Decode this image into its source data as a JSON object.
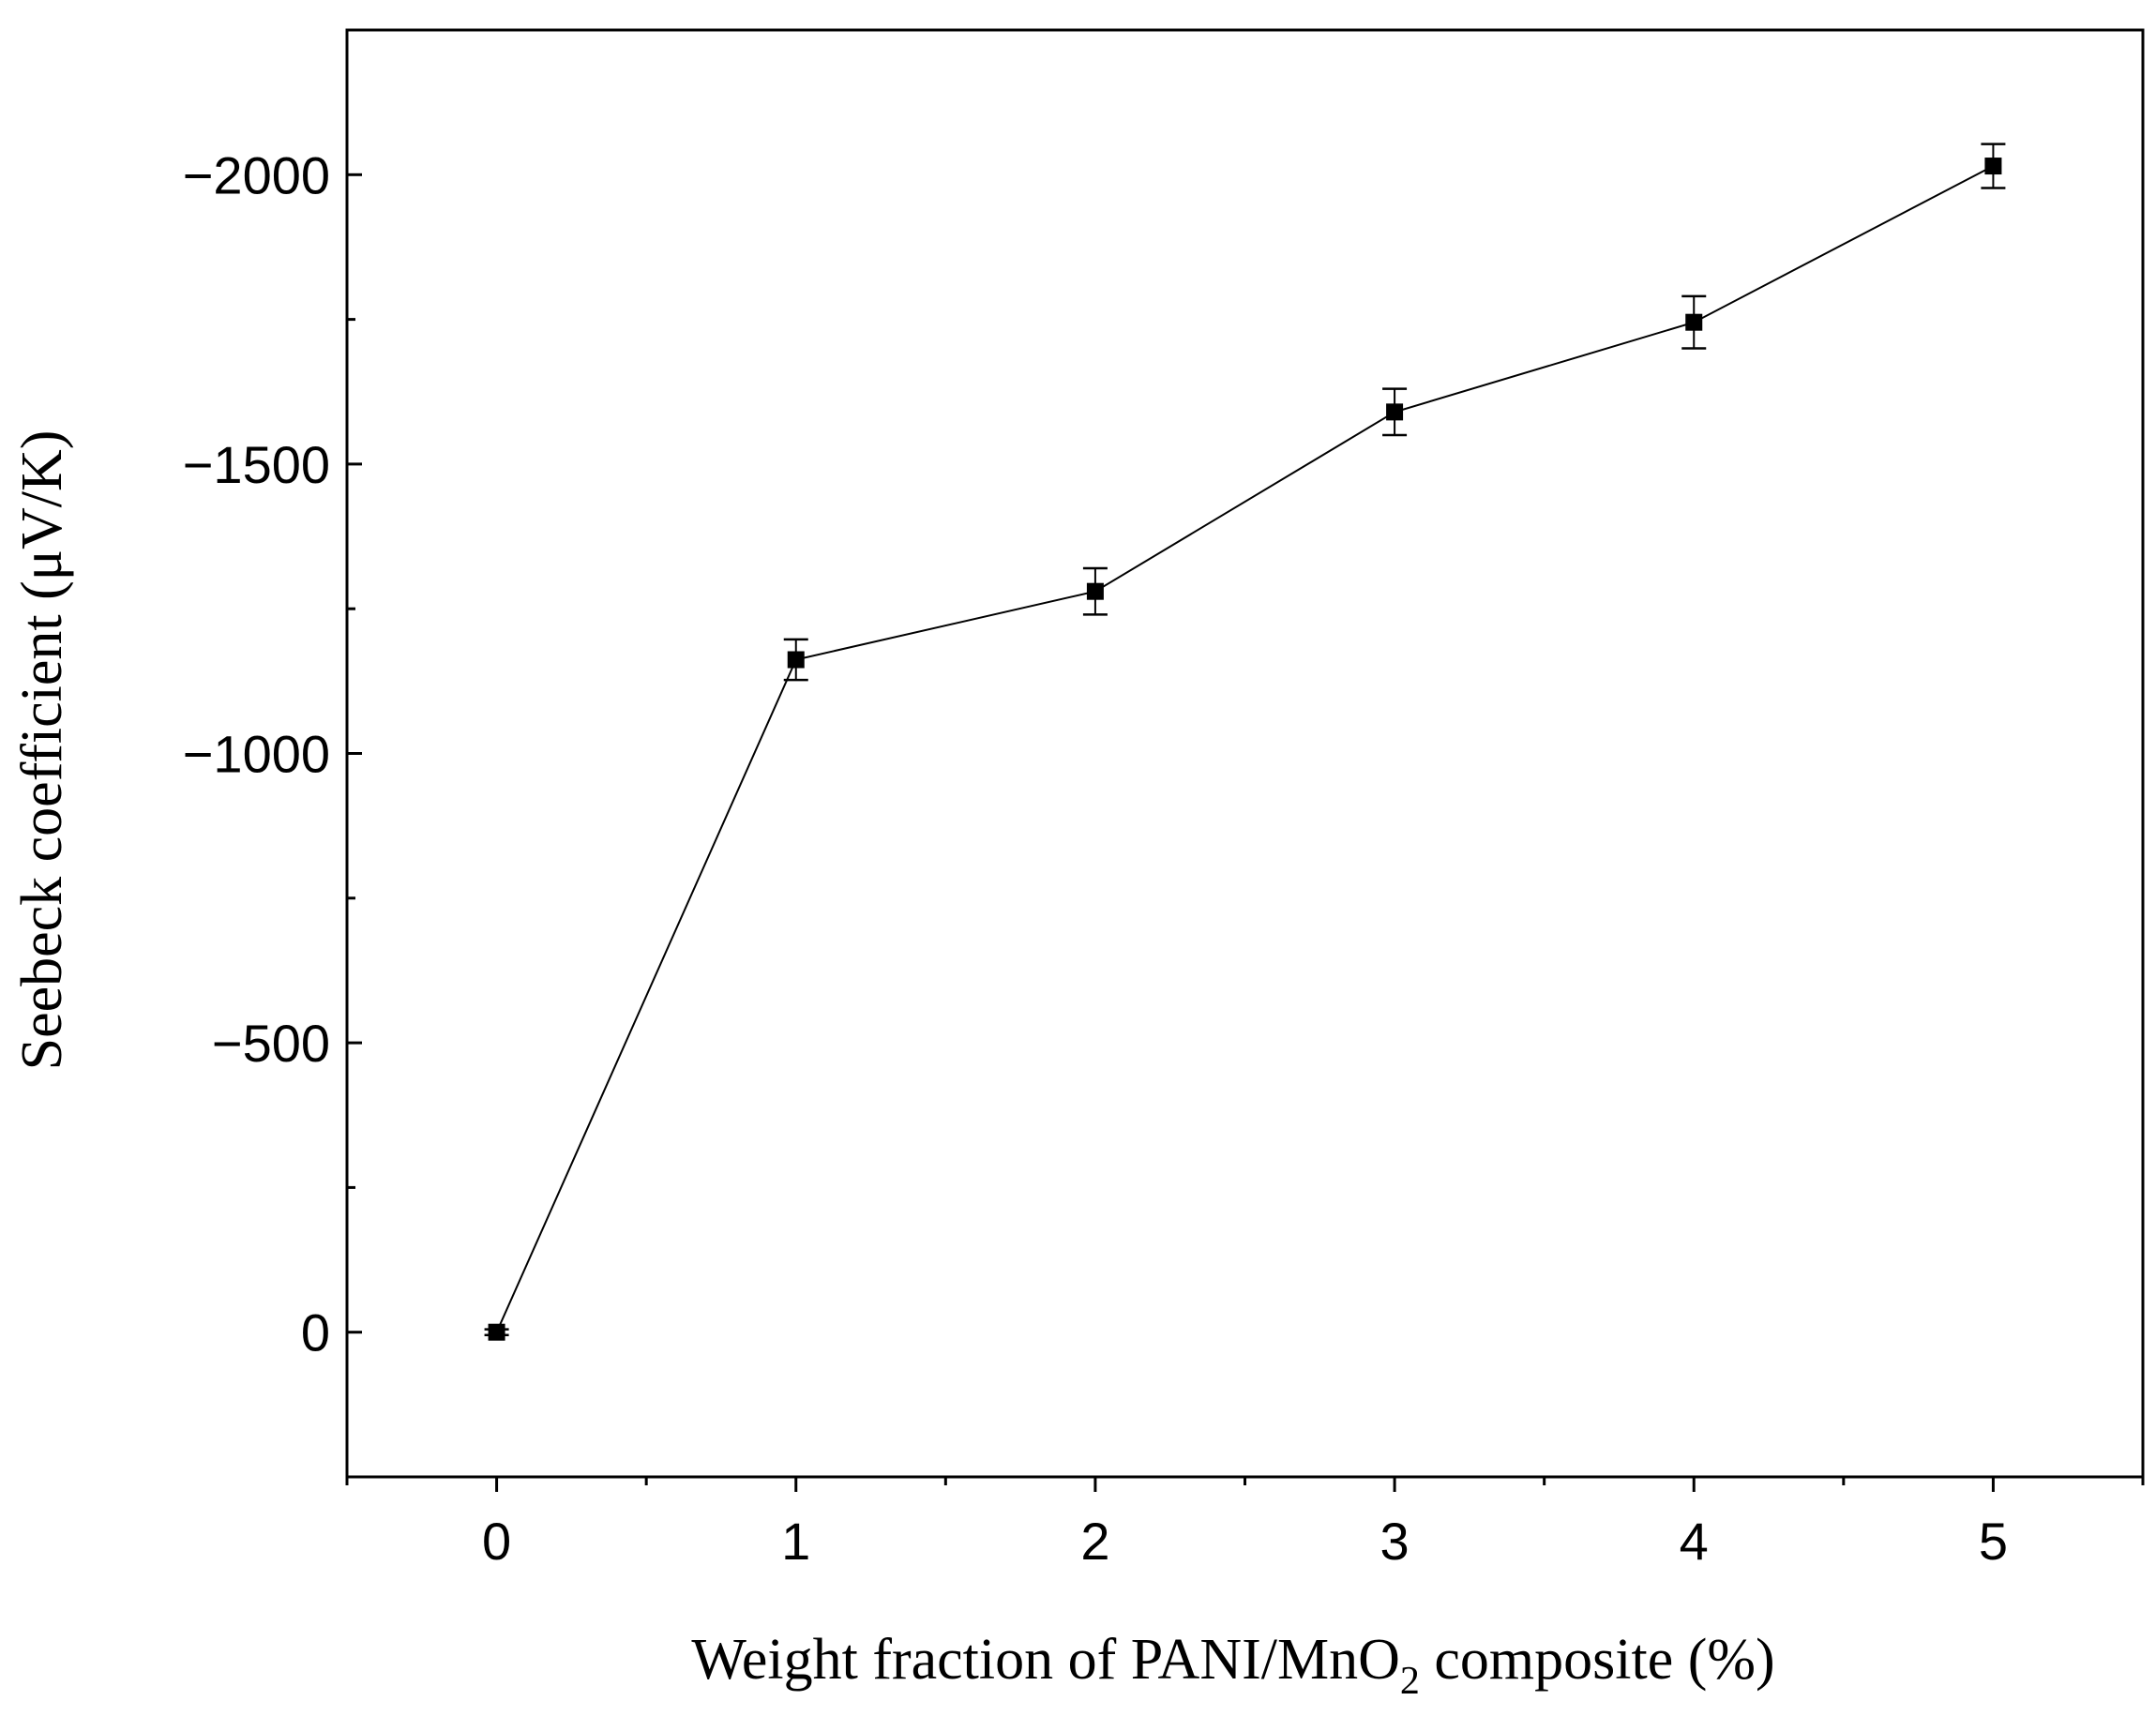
{
  "chart_data": {
    "type": "line",
    "title": "",
    "xlabel_parts": [
      "Weight fraction of PANI/MnO",
      "2",
      " composite (%)"
    ],
    "xlabel": "Weight fraction of PANI/MnO2 composite (%)",
    "ylabel": "Seebeck coefficient (μV/K)",
    "xlim": [
      -0.5,
      5.5
    ],
    "ylim": [
      250,
      -2250
    ],
    "x_ticks": [
      0,
      1,
      2,
      3,
      4,
      5
    ],
    "x_tick_labels": [
      "0",
      "1",
      "2",
      "3",
      "4",
      "5"
    ],
    "y_ticks": [
      0,
      -500,
      -1000,
      -1500,
      -2000
    ],
    "y_tick_labels": [
      "0",
      "−500",
      "−1000",
      "−1500",
      "−2000"
    ],
    "series": [
      {
        "name": "Seebeck coefficient",
        "x": [
          0,
          1,
          2,
          3,
          4,
          5
        ],
        "y": [
          0,
          -1162,
          -1280,
          -1590,
          -1745,
          -2015
        ],
        "error": [
          5,
          35,
          40,
          40,
          45,
          38
        ],
        "color": "#000000",
        "marker": "square"
      }
    ]
  }
}
